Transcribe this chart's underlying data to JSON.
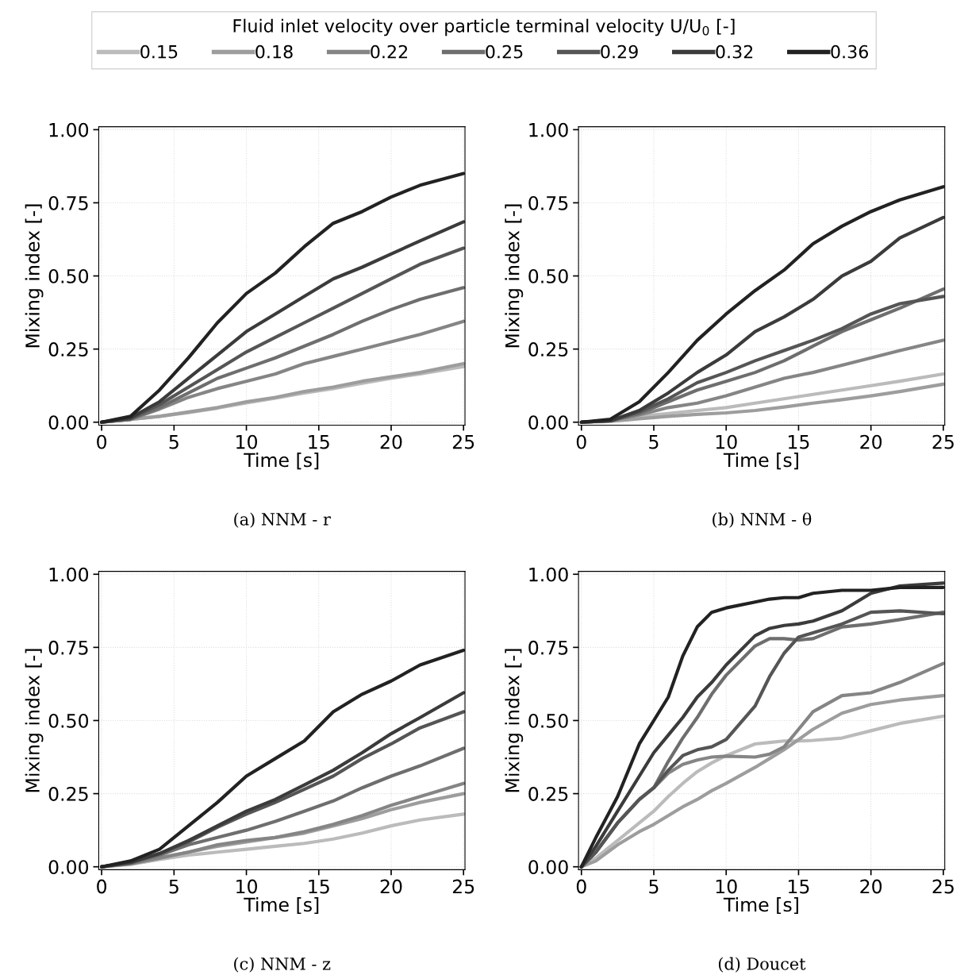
{
  "chart_data": [
    {
      "type": "line",
      "title": "(a) NNM - r",
      "xlabel": "Time [s]",
      "ylabel": "Mixing index [-]",
      "legend_title": "Fluid inlet velocity over particle terminal velocity U/U$_{0}$ [-]",
      "legend": "top",
      "grid": true,
      "line_style": "solid",
      "marker": "none",
      "xlim": [
        -0.2,
        25.1
      ],
      "ylim": [
        -0.01,
        1.01
      ],
      "xticks": [
        0,
        5,
        10,
        15,
        20,
        25
      ],
      "yticks": [
        {
          "value": 0,
          "label": "0.00"
        },
        {
          "value": 0.25,
          "label": "0.25"
        },
        {
          "value": 0.5,
          "label": "0.50"
        },
        {
          "value": 0.75,
          "label": "0.75"
        },
        {
          "value": 1,
          "label": "1.00"
        }
      ],
      "x": [
        0,
        2,
        4,
        6,
        8,
        10,
        12,
        14,
        16,
        18,
        20,
        22,
        25
      ],
      "series": [
        {
          "name": "0.15",
          "color": "#bbbbbb",
          "values": [
            0,
            0.01,
            0.02,
            0.033,
            0.048,
            0.066,
            0.082,
            0.1,
            0.115,
            0.133,
            0.15,
            0.165,
            0.19
          ]
        },
        {
          "name": "0.18",
          "color": "#9d9d9d",
          "values": [
            0,
            0.01,
            0.02,
            0.035,
            0.05,
            0.07,
            0.085,
            0.105,
            0.12,
            0.14,
            0.155,
            0.17,
            0.2
          ]
        },
        {
          "name": "0.22",
          "color": "#858585",
          "values": [
            0,
            0.01,
            0.045,
            0.085,
            0.115,
            0.14,
            0.165,
            0.2,
            0.225,
            0.25,
            0.275,
            0.3,
            0.345
          ]
        },
        {
          "name": "0.25",
          "color": "#6e6e6e",
          "values": [
            0,
            0.01,
            0.05,
            0.1,
            0.15,
            0.185,
            0.22,
            0.26,
            0.3,
            0.345,
            0.385,
            0.42,
            0.46
          ]
        },
        {
          "name": "0.29",
          "color": "#555555",
          "values": [
            0,
            0.012,
            0.06,
            0.12,
            0.18,
            0.24,
            0.29,
            0.34,
            0.39,
            0.44,
            0.49,
            0.54,
            0.595
          ]
        },
        {
          "name": "0.32",
          "color": "#3b3b3b",
          "values": [
            0,
            0.015,
            0.07,
            0.15,
            0.23,
            0.31,
            0.37,
            0.43,
            0.49,
            0.53,
            0.575,
            0.62,
            0.685
          ]
        },
        {
          "name": "0.36",
          "color": "#222222",
          "values": [
            0,
            0.02,
            0.11,
            0.22,
            0.34,
            0.44,
            0.51,
            0.6,
            0.68,
            0.72,
            0.77,
            0.81,
            0.85
          ]
        }
      ]
    },
    {
      "type": "line",
      "title": "(b) NNM - θ",
      "xlabel": "Time [s]",
      "ylabel": "Mixing index [-]",
      "grid": true,
      "line_style": "solid",
      "marker": "none",
      "xlim": [
        -0.2,
        25.1
      ],
      "ylim": [
        -0.01,
        1.01
      ],
      "xticks": [
        0,
        5,
        10,
        15,
        20,
        25
      ],
      "yticks": [
        {
          "value": 0,
          "label": "0.00"
        },
        {
          "value": 0.25,
          "label": "0.25"
        },
        {
          "value": 0.5,
          "label": "0.50"
        },
        {
          "value": 0.75,
          "label": "0.75"
        },
        {
          "value": 1,
          "label": "1.00"
        }
      ],
      "x": [
        0,
        2,
        4,
        6,
        8,
        10,
        12,
        14,
        16,
        18,
        20,
        22,
        25
      ],
      "series": [
        {
          "color": "#bbbbbb",
          "values": [
            0,
            0.005,
            0.02,
            0.03,
            0.04,
            0.05,
            0.065,
            0.08,
            0.095,
            0.11,
            0.125,
            0.14,
            0.165
          ]
        },
        {
          "color": "#9d9d9d",
          "values": [
            0,
            0.003,
            0.012,
            0.02,
            0.027,
            0.032,
            0.04,
            0.052,
            0.065,
            0.077,
            0.09,
            0.105,
            0.13
          ]
        },
        {
          "color": "#858585",
          "values": [
            0,
            0.005,
            0.025,
            0.05,
            0.065,
            0.09,
            0.12,
            0.15,
            0.17,
            0.195,
            0.22,
            0.245,
            0.28
          ]
        },
        {
          "color": "#6e6e6e",
          "values": [
            0,
            0.005,
            0.03,
            0.07,
            0.11,
            0.14,
            0.17,
            0.21,
            0.26,
            0.31,
            0.35,
            0.39,
            0.455
          ]
        },
        {
          "color": "#555555",
          "values": [
            0,
            0.005,
            0.035,
            0.08,
            0.135,
            0.17,
            0.21,
            0.245,
            0.28,
            0.32,
            0.37,
            0.405,
            0.43
          ]
        },
        {
          "color": "#3b3b3b",
          "values": [
            0,
            0.005,
            0.04,
            0.1,
            0.17,
            0.23,
            0.31,
            0.36,
            0.42,
            0.5,
            0.55,
            0.63,
            0.7
          ]
        },
        {
          "color": "#222222",
          "values": [
            0,
            0.01,
            0.07,
            0.17,
            0.28,
            0.37,
            0.45,
            0.52,
            0.61,
            0.67,
            0.72,
            0.76,
            0.805
          ]
        }
      ]
    },
    {
      "type": "line",
      "title": "(c) NNM - z",
      "xlabel": "Time [s]",
      "ylabel": "Mixing index [-]",
      "grid": true,
      "line_style": "solid",
      "marker": "none",
      "xlim": [
        -0.2,
        25.1
      ],
      "ylim": [
        -0.01,
        1.01
      ],
      "xticks": [
        0,
        5,
        10,
        15,
        20,
        25
      ],
      "yticks": [
        {
          "value": 0,
          "label": "0.00"
        },
        {
          "value": 0.25,
          "label": "0.25"
        },
        {
          "value": 0.5,
          "label": "0.50"
        },
        {
          "value": 0.75,
          "label": "0.75"
        },
        {
          "value": 1,
          "label": "1.00"
        }
      ],
      "x": [
        0,
        2,
        4,
        6,
        8,
        10,
        12,
        14,
        16,
        18,
        20,
        22,
        25
      ],
      "series": [
        {
          "color": "#bbbbbb",
          "values": [
            0,
            0.008,
            0.025,
            0.04,
            0.05,
            0.06,
            0.07,
            0.08,
            0.095,
            0.115,
            0.14,
            0.16,
            0.18
          ]
        },
        {
          "color": "#9d9d9d",
          "values": [
            0,
            0.01,
            0.03,
            0.05,
            0.07,
            0.085,
            0.1,
            0.115,
            0.14,
            0.165,
            0.195,
            0.22,
            0.25
          ]
        },
        {
          "color": "#858585",
          "values": [
            0,
            0.01,
            0.03,
            0.05,
            0.075,
            0.09,
            0.1,
            0.12,
            0.145,
            0.175,
            0.21,
            0.24,
            0.285
          ]
        },
        {
          "color": "#6e6e6e",
          "values": [
            0,
            0.012,
            0.04,
            0.075,
            0.1,
            0.125,
            0.155,
            0.19,
            0.225,
            0.27,
            0.31,
            0.345,
            0.405
          ]
        },
        {
          "color": "#555555",
          "values": [
            0,
            0.015,
            0.045,
            0.085,
            0.135,
            0.18,
            0.22,
            0.265,
            0.31,
            0.37,
            0.42,
            0.475,
            0.53
          ]
        },
        {
          "color": "#3b3b3b",
          "values": [
            0,
            0.015,
            0.045,
            0.09,
            0.14,
            0.19,
            0.23,
            0.28,
            0.33,
            0.39,
            0.455,
            0.51,
            0.595
          ]
        },
        {
          "color": "#222222",
          "values": [
            0,
            0.02,
            0.06,
            0.14,
            0.22,
            0.31,
            0.37,
            0.43,
            0.53,
            0.59,
            0.635,
            0.69,
            0.74
          ]
        }
      ]
    },
    {
      "type": "line",
      "title": "(d) Doucet",
      "xlabel": "Time [s]",
      "ylabel": "Mixing index [-]",
      "grid": true,
      "line_style": "solid",
      "marker": "none",
      "xlim": [
        -0.2,
        25.1
      ],
      "ylim": [
        -0.01,
        1.01
      ],
      "xticks": [
        0,
        5,
        10,
        15,
        20,
        25
      ],
      "yticks": [
        {
          "value": 0,
          "label": "0.00"
        },
        {
          "value": 0.25,
          "label": "0.25"
        },
        {
          "value": 0.5,
          "label": "0.50"
        },
        {
          "value": 0.75,
          "label": "0.75"
        },
        {
          "value": 1,
          "label": "1.00"
        }
      ],
      "x": [
        0,
        1,
        2.5,
        4,
        5,
        6,
        7,
        8,
        9,
        10,
        12,
        13,
        14,
        15,
        16,
        18,
        20,
        22,
        25
      ],
      "series": [
        {
          "color": "#bbbbbb",
          "values": [
            0,
            0.03,
            0.09,
            0.15,
            0.19,
            0.24,
            0.285,
            0.325,
            0.355,
            0.38,
            0.42,
            0.425,
            0.43,
            0.43,
            0.432,
            0.44,
            0.465,
            0.49,
            0.515
          ]
        },
        {
          "color": "#9d9d9d",
          "values": [
            0,
            0.02,
            0.075,
            0.12,
            0.145,
            0.175,
            0.205,
            0.23,
            0.26,
            0.285,
            0.34,
            0.37,
            0.4,
            0.435,
            0.47,
            0.525,
            0.555,
            0.57,
            0.585
          ]
        },
        {
          "color": "#858585",
          "values": [
            0,
            0.05,
            0.15,
            0.23,
            0.27,
            0.32,
            0.35,
            0.365,
            0.375,
            0.378,
            0.375,
            0.385,
            0.41,
            0.47,
            0.53,
            0.585,
            0.595,
            0.63,
            0.695
          ]
        },
        {
          "color": "#6e6e6e",
          "values": [
            0,
            0.05,
            0.15,
            0.23,
            0.27,
            0.36,
            0.44,
            0.51,
            0.59,
            0.655,
            0.755,
            0.78,
            0.78,
            0.775,
            0.78,
            0.82,
            0.83,
            0.845,
            0.87
          ]
        },
        {
          "color": "#555555",
          "values": [
            0,
            0.05,
            0.15,
            0.23,
            0.27,
            0.33,
            0.38,
            0.4,
            0.41,
            0.435,
            0.55,
            0.65,
            0.73,
            0.785,
            0.8,
            0.83,
            0.87,
            0.875,
            0.865
          ]
        },
        {
          "color": "#3b3b3b",
          "values": [
            0,
            0.07,
            0.19,
            0.31,
            0.39,
            0.45,
            0.51,
            0.58,
            0.63,
            0.69,
            0.79,
            0.815,
            0.825,
            0.83,
            0.84,
            0.875,
            0.935,
            0.96,
            0.97
          ]
        },
        {
          "color": "#222222",
          "values": [
            0,
            0.1,
            0.24,
            0.42,
            0.5,
            0.58,
            0.72,
            0.82,
            0.87,
            0.885,
            0.905,
            0.915,
            0.92,
            0.92,
            0.935,
            0.945,
            0.945,
            0.955,
            0.955
          ]
        }
      ]
    }
  ]
}
